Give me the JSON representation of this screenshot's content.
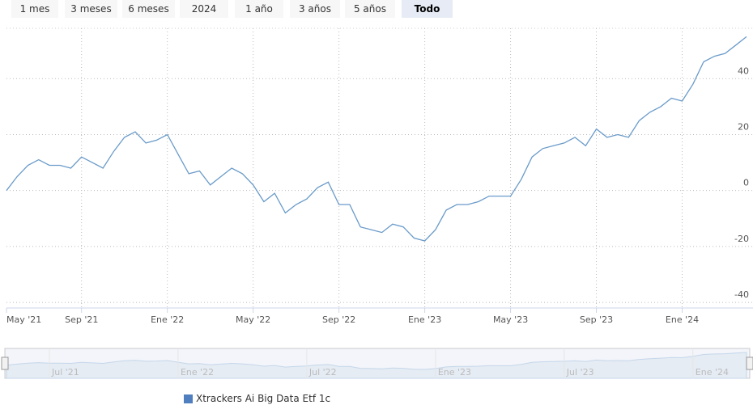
{
  "range_buttons": [
    "1 mes",
    "3 meses",
    "6 meses",
    "2024",
    "1 año",
    "3 años",
    "5 años",
    "Todo"
  ],
  "active_button": 7,
  "chart_data": {
    "type": "line",
    "categories": [
      "May '21",
      null,
      null,
      null,
      null,
      null,
      null,
      "Sep '21",
      null,
      null,
      null,
      null,
      null,
      null,
      null,
      "Ene '22",
      null,
      null,
      null,
      null,
      null,
      null,
      null,
      "May '22",
      null,
      null,
      null,
      null,
      null,
      null,
      null,
      "Sep '22",
      null,
      null,
      null,
      null,
      null,
      null,
      null,
      "Ene '23",
      null,
      null,
      null,
      null,
      null,
      null,
      null,
      "May '23",
      null,
      null,
      null,
      null,
      null,
      null,
      null,
      "Sep '23",
      null,
      null,
      null,
      null,
      null,
      null,
      null,
      "Ene '24",
      null,
      null,
      null,
      null,
      null,
      null
    ],
    "series": [
      {
        "name": "Xtrackers Ai Big Data Etf 1c",
        "color": "#6a9bc9",
        "legend_color": "#4f7fbf",
        "values": [
          0,
          5,
          9,
          11,
          9,
          9,
          8,
          12,
          10,
          8,
          14,
          19,
          21,
          17,
          18,
          20,
          13,
          6,
          7,
          2,
          5,
          8,
          6,
          2,
          -4,
          -1,
          -8,
          -5,
          -3,
          1,
          3,
          -5,
          -5,
          -13,
          -14,
          -15,
          -12,
          -13,
          -17,
          -18,
          -14,
          -7,
          -5,
          -5,
          -4,
          -2,
          -2,
          -2,
          4,
          12,
          15,
          16,
          17,
          19,
          16,
          22,
          19,
          20,
          19,
          25,
          28,
          30,
          33,
          32,
          38,
          46,
          48,
          49,
          52,
          55
        ]
      }
    ],
    "ylim": [
      -42,
      58
    ],
    "yticks": [
      -40,
      -20,
      0,
      20,
      40
    ],
    "grid": true,
    "navigator_labels": [
      "Jul '21",
      "Ene '22",
      "Jul '22",
      "Ene '23",
      "Jul '23",
      "Ene '24"
    ]
  }
}
